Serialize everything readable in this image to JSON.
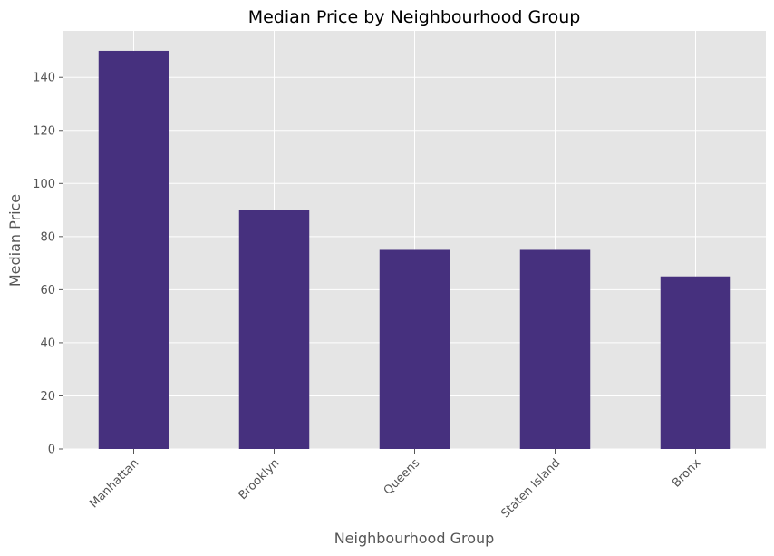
{
  "chart_data": {
    "type": "bar",
    "title": "Median Price by Neighbourhood Group",
    "xlabel": "Neighbourhood Group",
    "ylabel": "Median Price",
    "categories": [
      "Manhattan",
      "Brooklyn",
      "Queens",
      "Staten Island",
      "Bronx"
    ],
    "values": [
      150,
      90,
      75,
      75,
      65
    ],
    "ylim": [
      0,
      157.5
    ],
    "yticks": [
      0,
      20,
      40,
      60,
      80,
      100,
      120,
      140
    ],
    "grid": true,
    "bar_color": "#46307e",
    "background_color": "#e5e5e5",
    "grid_color": "#ffffff"
  }
}
